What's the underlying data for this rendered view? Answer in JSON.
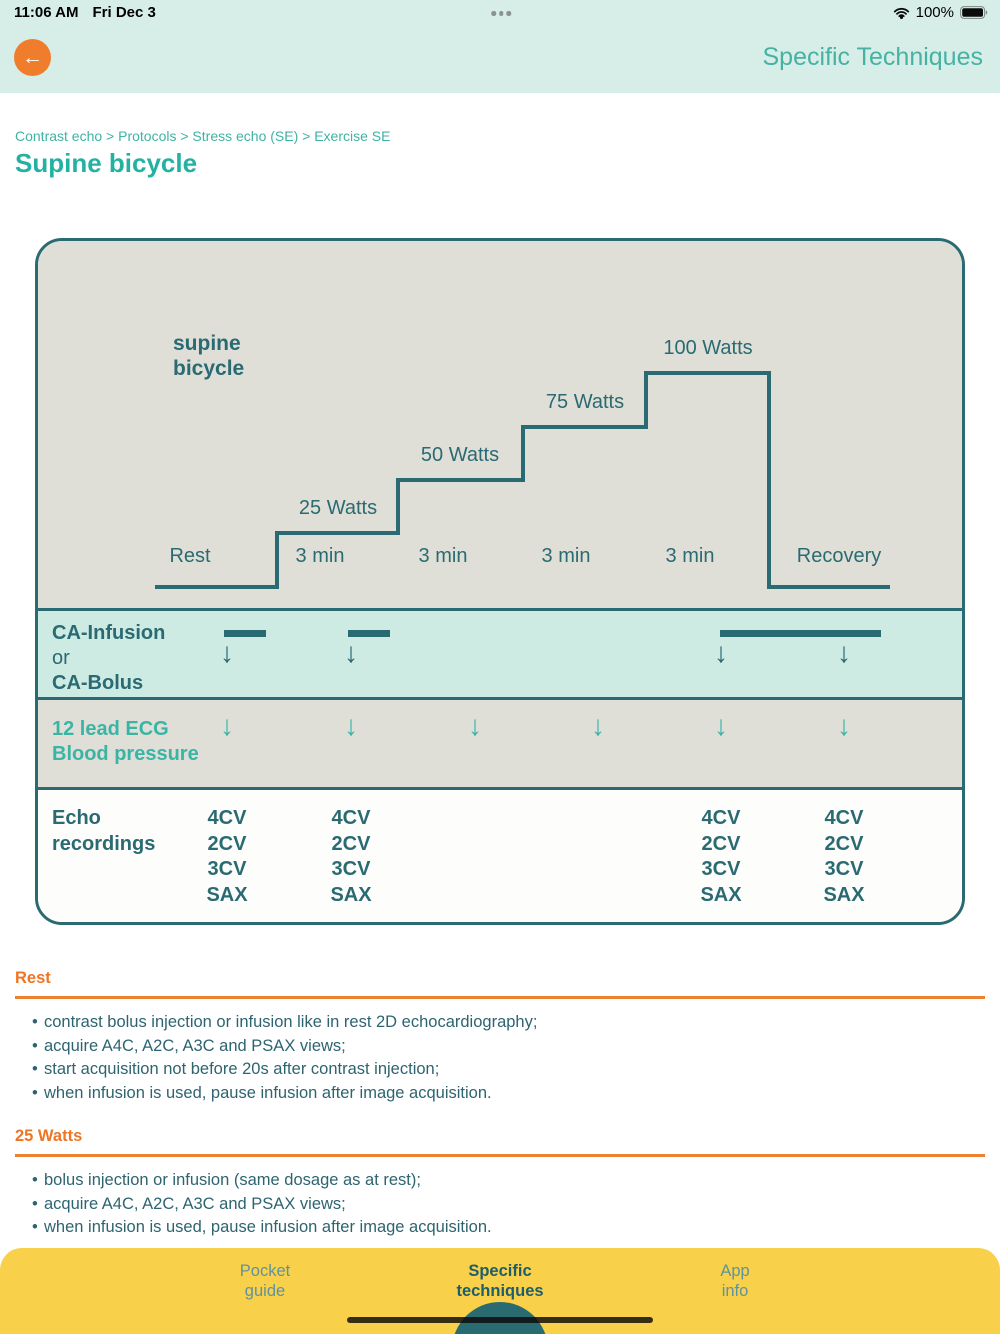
{
  "status_bar": {
    "time": "11:06 AM",
    "date": "Fri Dec 3",
    "battery_label": "100%"
  },
  "header": {
    "back_icon": "←",
    "title": "Specific Techniques"
  },
  "breadcrumb": "Contrast echo > Protocols > Stress echo (SE) > Exercise SE",
  "page_title": "Supine bicycle",
  "chart_data": {
    "type": "step-protocol-diagram",
    "title": "supine bicycle",
    "title_lines": [
      "supine",
      "bicycle"
    ],
    "stages": [
      {
        "name": "Rest",
        "duration_label": "Rest",
        "watts": 0,
        "watts_label": ""
      },
      {
        "name": "25 Watts",
        "duration_label": "3 min",
        "watts": 25,
        "watts_label": "25 Watts"
      },
      {
        "name": "50 Watts",
        "duration_label": "3 min",
        "watts": 50,
        "watts_label": "50 Watts"
      },
      {
        "name": "75 Watts",
        "duration_label": "3 min",
        "watts": 75,
        "watts_label": "75 Watts"
      },
      {
        "name": "100 Watts",
        "duration_label": "3 min",
        "watts": 100,
        "watts_label": "100 Watts"
      },
      {
        "name": "Recovery",
        "duration_label": "Recovery",
        "watts": 0,
        "watts_label": ""
      }
    ],
    "rows": [
      {
        "id": "contrast",
        "label_lines": [
          {
            "text": "CA-Infusion",
            "bold": true
          },
          {
            "text": "or",
            "bold": false
          },
          {
            "text": "CA-Bolus",
            "bold": true
          }
        ],
        "bars": [
          {
            "cols": [
              0
            ]
          },
          {
            "cols": [
              1
            ]
          },
          {
            "cols": [
              4,
              5
            ]
          }
        ],
        "arrows": {
          "cols": [
            0,
            1,
            4,
            5
          ],
          "glyph": "↓"
        }
      },
      {
        "id": "ecg-bp",
        "label_lines": [
          {
            "text": "12 lead ECG",
            "bold": true
          },
          {
            "text": "Blood pressure",
            "bold": true
          }
        ],
        "arrows": {
          "cols": [
            0,
            1,
            2,
            3,
            4,
            5
          ],
          "glyph": "↓"
        }
      },
      {
        "id": "echo-recordings",
        "label_lines": [
          {
            "text": "Echo",
            "bold": true
          },
          {
            "text": "recordings",
            "bold": true
          }
        ],
        "recordings": {
          "cols": [
            0,
            1,
            4,
            5
          ],
          "views": [
            "4CV",
            "2CV",
            "3CV",
            "SAX"
          ]
        }
      }
    ]
  },
  "sections": [
    {
      "heading": "Rest",
      "bullets": [
        "contrast bolus injection or infusion like in rest 2D echocardiography;",
        "acquire A4C, A2C, A3C and PSAX views;",
        "start acquisition not before 20s after contrast injection;",
        "when infusion is used, pause infusion after image acquisition."
      ]
    },
    {
      "heading": "25 Watts",
      "bullets": [
        "bolus injection or infusion (same dosage as at rest);",
        "acquire A4C, A2C, A3C and PSAX views;",
        "when infusion is used, pause infusion after image acquisition."
      ]
    }
  ],
  "tab_bar": {
    "items": [
      {
        "id": "pocket-guide",
        "lines": [
          "Pocket",
          "guide"
        ],
        "active": false
      },
      {
        "id": "specific-techniques",
        "lines": [
          "Specific",
          "techniques"
        ],
        "active": true
      },
      {
        "id": "app-info",
        "lines": [
          "App",
          "info"
        ],
        "active": false
      }
    ]
  },
  "colors": {
    "dark_teal": "#2a6a72",
    "bright_teal": "#3ab5a5",
    "header_teal": "#45b2a3",
    "orange": "#ee7524",
    "mint": "#d7eee8",
    "yellow": "#f8d049",
    "chart_gray": "#e0dfd7",
    "contrast_band": "#cdeae3"
  }
}
